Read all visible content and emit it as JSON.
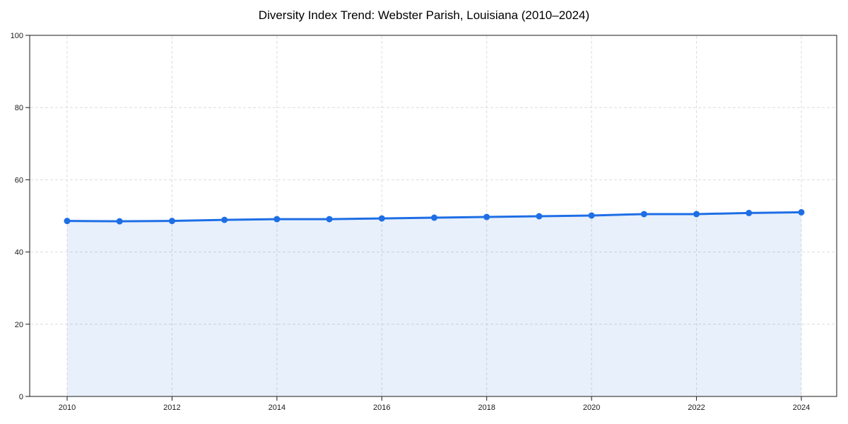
{
  "page": {
    "title": "Diversity Index Trend: Webster Parish, Louisiana (2010–2024)"
  },
  "chart_data": {
    "type": "area",
    "title": "Diversity Index Trend: Webster Parish, Louisiana (2010–2024)",
    "x": [
      2010,
      2011,
      2012,
      2013,
      2014,
      2015,
      2016,
      2017,
      2018,
      2019,
      2020,
      2021,
      2022,
      2023,
      2024
    ],
    "series": [
      {
        "name": "Diversity Index",
        "values": [
          48.6,
          48.5,
          48.6,
          48.9,
          49.1,
          49.1,
          49.3,
          49.5,
          49.7,
          49.9,
          50.1,
          50.5,
          50.5,
          50.8,
          51.0
        ]
      }
    ],
    "xlabel": "",
    "ylabel": "",
    "ylim": [
      0,
      100
    ],
    "yticks": [
      0,
      20,
      40,
      60,
      80,
      100
    ],
    "xticks": [
      2010,
      2012,
      2014,
      2016,
      2018,
      2020,
      2022,
      2024
    ],
    "grid": true,
    "grid_style": "dashed",
    "legend": false,
    "marker": "circle",
    "colors": {
      "line": "#1e6ee5",
      "fill": "#e8effc",
      "grid": "#dcdcdc",
      "spine": "#1a1a1a",
      "tick_label": "#1a1a1a",
      "background": "#ffffff"
    }
  }
}
